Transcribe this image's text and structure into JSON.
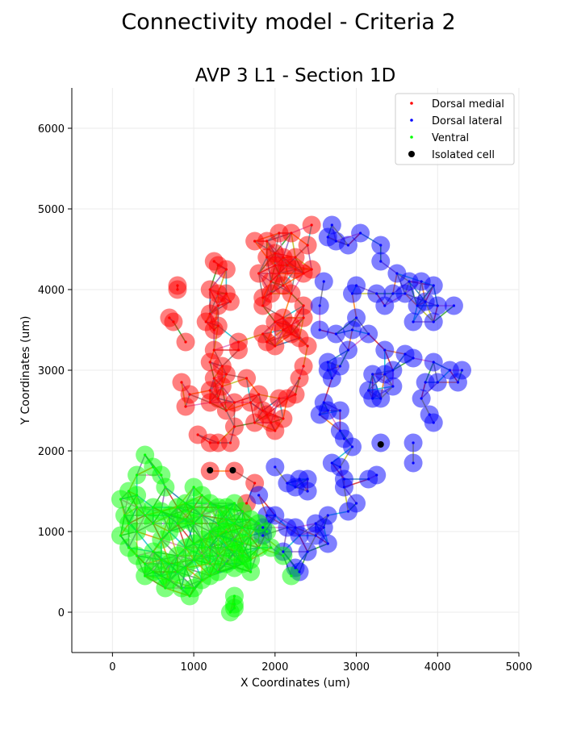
{
  "figure": {
    "suptitle": "Connectivity model - Criteria 2"
  },
  "chart_data": {
    "type": "scatter",
    "title": "AVP 3 L1 - Section 1D",
    "xlabel": "X Coordinates (um)",
    "ylabel": "Y Coordinates (um)",
    "xlim": [
      -500,
      5000
    ],
    "ylim": [
      -500,
      6500
    ],
    "xticks": [
      0,
      1000,
      2000,
      3000,
      4000,
      5000
    ],
    "yticks": [
      0,
      1000,
      2000,
      3000,
      4000,
      5000,
      6000
    ],
    "grid": true,
    "legend_position": "top-right",
    "legend": [
      {
        "label": "Dorsal medial",
        "color": "#ff0000",
        "marker": "small-dot"
      },
      {
        "label": "Dorsal lateral",
        "color": "#0000ff",
        "marker": "small-dot"
      },
      {
        "label": "Ventral",
        "color": "#00ff00",
        "marker": "small-dot"
      },
      {
        "label": "Isolated cell",
        "color": "#000000",
        "marker": "large-dot"
      }
    ],
    "series": [
      {
        "name": "Dorsal medial",
        "color": "#ff0000",
        "points": [
          [
            800,
            4000
          ],
          [
            800,
            4050
          ],
          [
            700,
            3650
          ],
          [
            750,
            3600
          ],
          [
            900,
            3350
          ],
          [
            850,
            2850
          ],
          [
            950,
            2700
          ],
          [
            900,
            2550
          ],
          [
            1050,
            2200
          ],
          [
            1200,
            2100
          ],
          [
            1300,
            2100
          ],
          [
            1200,
            1750
          ],
          [
            1500,
            1750
          ],
          [
            1250,
            4350
          ],
          [
            1300,
            4300
          ],
          [
            1400,
            4250
          ],
          [
            1200,
            4000
          ],
          [
            1300,
            3950
          ],
          [
            1400,
            3950
          ],
          [
            1450,
            3850
          ],
          [
            1300,
            3800
          ],
          [
            1200,
            3700
          ],
          [
            1150,
            3600
          ],
          [
            1250,
            3500
          ],
          [
            1300,
            3550
          ],
          [
            1250,
            3250
          ],
          [
            1200,
            3100
          ],
          [
            1350,
            3050
          ],
          [
            1250,
            2900
          ],
          [
            1400,
            2950
          ],
          [
            1350,
            2800
          ],
          [
            1200,
            2750
          ],
          [
            1300,
            2650
          ],
          [
            1200,
            2600
          ],
          [
            1400,
            2500
          ],
          [
            1500,
            2600
          ],
          [
            1500,
            2300
          ],
          [
            1450,
            2100
          ],
          [
            1550,
            3350
          ],
          [
            1550,
            3250
          ],
          [
            1650,
            2900
          ],
          [
            1700,
            2600
          ],
          [
            1800,
            2700
          ],
          [
            1850,
            2500
          ],
          [
            1750,
            2350
          ],
          [
            1900,
            2450
          ],
          [
            1950,
            2350
          ],
          [
            2000,
            2250
          ],
          [
            2100,
            2400
          ],
          [
            2050,
            2650
          ],
          [
            2150,
            2650
          ],
          [
            2250,
            2700
          ],
          [
            2300,
            2900
          ],
          [
            2350,
            3050
          ],
          [
            2400,
            3300
          ],
          [
            2300,
            3400
          ],
          [
            2200,
            3450
          ],
          [
            2100,
            3500
          ],
          [
            2000,
            3300
          ],
          [
            1900,
            3350
          ],
          [
            1850,
            3450
          ],
          [
            2000,
            3600
          ],
          [
            2100,
            3650
          ],
          [
            2200,
            3550
          ],
          [
            2350,
            3650
          ],
          [
            2350,
            3800
          ],
          [
            2200,
            3950
          ],
          [
            2100,
            4050
          ],
          [
            1950,
            3950
          ],
          [
            1850,
            3800
          ],
          [
            1850,
            3900
          ],
          [
            1950,
            4100
          ],
          [
            2050,
            4200
          ],
          [
            2150,
            4300
          ],
          [
            2250,
            4250
          ],
          [
            2350,
            4200
          ],
          [
            2450,
            4250
          ],
          [
            2400,
            4550
          ],
          [
            2450,
            4800
          ],
          [
            2200,
            4700
          ],
          [
            2050,
            4700
          ],
          [
            1900,
            4600
          ],
          [
            1750,
            4600
          ],
          [
            2000,
            4450
          ],
          [
            1900,
            4400
          ],
          [
            2100,
            4400
          ],
          [
            2250,
            4400
          ],
          [
            2000,
            4300
          ],
          [
            1800,
            4200
          ],
          [
            1750,
            1600
          ],
          [
            1650,
            1350
          ]
        ]
      },
      {
        "name": "Dorsal lateral",
        "color": "#0000ff",
        "points": [
          [
            2700,
            4800
          ],
          [
            2650,
            4650
          ],
          [
            2750,
            4600
          ],
          [
            2900,
            4550
          ],
          [
            3050,
            4700
          ],
          [
            3300,
            4550
          ],
          [
            3300,
            4350
          ],
          [
            3500,
            4200
          ],
          [
            3650,
            4100
          ],
          [
            3800,
            4100
          ],
          [
            3950,
            4050
          ],
          [
            3850,
            3850
          ],
          [
            4000,
            3800
          ],
          [
            4200,
            3800
          ],
          [
            3950,
            3600
          ],
          [
            3700,
            3600
          ],
          [
            3750,
            3800
          ],
          [
            3350,
            3800
          ],
          [
            3450,
            3950
          ],
          [
            3600,
            3950
          ],
          [
            3250,
            3950
          ],
          [
            3000,
            4050
          ],
          [
            2950,
            3950
          ],
          [
            2600,
            4100
          ],
          [
            2550,
            3800
          ],
          [
            2550,
            3500
          ],
          [
            2750,
            3450
          ],
          [
            2950,
            3500
          ],
          [
            3000,
            3650
          ],
          [
            3150,
            3450
          ],
          [
            2900,
            3250
          ],
          [
            2650,
            3100
          ],
          [
            2650,
            3000
          ],
          [
            2800,
            3050
          ],
          [
            2700,
            2900
          ],
          [
            2600,
            2600
          ],
          [
            2550,
            2450
          ],
          [
            2650,
            2500
          ],
          [
            2800,
            2500
          ],
          [
            2800,
            2250
          ],
          [
            2850,
            2150
          ],
          [
            2950,
            2050
          ],
          [
            3200,
            2950
          ],
          [
            3350,
            2950
          ],
          [
            3450,
            3000
          ],
          [
            3450,
            2800
          ],
          [
            3350,
            3250
          ],
          [
            3600,
            3200
          ],
          [
            3700,
            3150
          ],
          [
            3850,
            2850
          ],
          [
            3800,
            2650
          ],
          [
            4000,
            2850
          ],
          [
            4150,
            3000
          ],
          [
            4300,
            3000
          ],
          [
            4250,
            2850
          ],
          [
            3950,
            3100
          ],
          [
            3900,
            2450
          ],
          [
            3950,
            2350
          ],
          [
            3700,
            2100
          ],
          [
            3700,
            1850
          ],
          [
            3300,
            2100
          ],
          [
            3200,
            2650
          ],
          [
            3300,
            2650
          ],
          [
            3150,
            2750
          ],
          [
            3250,
            1700
          ],
          [
            3150,
            1650
          ],
          [
            3000,
            1350
          ],
          [
            2900,
            1250
          ],
          [
            2850,
            1550
          ],
          [
            2850,
            1650
          ],
          [
            2800,
            1800
          ],
          [
            2700,
            1850
          ],
          [
            2650,
            1200
          ],
          [
            2600,
            1050
          ],
          [
            2650,
            850
          ],
          [
            2500,
            950
          ],
          [
            2500,
            1100
          ],
          [
            2400,
            750
          ],
          [
            2300,
            950
          ],
          [
            2250,
            1050
          ],
          [
            2250,
            550
          ],
          [
            2300,
            500
          ],
          [
            2100,
            750
          ],
          [
            2150,
            1050
          ],
          [
            2000,
            1200
          ],
          [
            2000,
            1800
          ],
          [
            2300,
            1650
          ],
          [
            2400,
            1650
          ],
          [
            2400,
            1500
          ],
          [
            2150,
            1600
          ],
          [
            2250,
            1550
          ],
          [
            1800,
            1450
          ],
          [
            1900,
            1200
          ],
          [
            1850,
            950
          ],
          [
            1850,
            1050
          ]
        ]
      },
      {
        "name": "Ventral",
        "color": "#00ff00",
        "points": [
          [
            400,
            1950
          ],
          [
            500,
            1800
          ],
          [
            600,
            1700
          ],
          [
            650,
            1550
          ],
          [
            300,
            1700
          ],
          [
            200,
            1500
          ],
          [
            300,
            1450
          ],
          [
            100,
            1400
          ],
          [
            150,
            1200
          ],
          [
            200,
            1100
          ],
          [
            300,
            1000
          ],
          [
            100,
            950
          ],
          [
            200,
            800
          ],
          [
            300,
            700
          ],
          [
            400,
            600
          ],
          [
            400,
            450
          ],
          [
            500,
            750
          ],
          [
            600,
            900
          ],
          [
            700,
            1000
          ],
          [
            700,
            1200
          ],
          [
            800,
            1300
          ],
          [
            900,
            1350
          ],
          [
            1000,
            1550
          ],
          [
            1100,
            1450
          ],
          [
            1200,
            1350
          ],
          [
            1300,
            1300
          ],
          [
            1400,
            1300
          ],
          [
            1500,
            1350
          ],
          [
            1600,
            1250
          ],
          [
            1700,
            1150
          ],
          [
            1800,
            1100
          ],
          [
            1900,
            1000
          ],
          [
            1800,
            800
          ],
          [
            1700,
            650
          ],
          [
            1600,
            700
          ],
          [
            1500,
            550
          ],
          [
            1400,
            600
          ],
          [
            1300,
            500
          ],
          [
            1200,
            450
          ],
          [
            1100,
            400
          ],
          [
            1000,
            300
          ],
          [
            950,
            200
          ],
          [
            850,
            300
          ],
          [
            650,
            300
          ],
          [
            600,
            450
          ],
          [
            500,
            500
          ],
          [
            600,
            650
          ],
          [
            700,
            600
          ],
          [
            800,
            700
          ],
          [
            900,
            800
          ],
          [
            1000,
            850
          ],
          [
            1100,
            900
          ],
          [
            1200,
            1000
          ],
          [
            1300,
            1100
          ],
          [
            1400,
            1000
          ],
          [
            1500,
            900
          ],
          [
            1600,
            850
          ],
          [
            1700,
            950
          ],
          [
            1600,
            1050
          ],
          [
            1500,
            1100
          ],
          [
            1400,
            1150
          ],
          [
            1300,
            950
          ],
          [
            1200,
            800
          ],
          [
            1100,
            700
          ],
          [
            1000,
            650
          ],
          [
            900,
            550
          ],
          [
            800,
            500
          ],
          [
            700,
            400
          ],
          [
            500,
            1100
          ],
          [
            400,
            1200
          ],
          [
            300,
            1300
          ],
          [
            500,
            1300
          ],
          [
            600,
            1250
          ],
          [
            800,
            1100
          ],
          [
            900,
            1150
          ],
          [
            1000,
            1100
          ],
          [
            1100,
            1200
          ],
          [
            1000,
            1300
          ],
          [
            1200,
            600
          ],
          [
            1300,
            700
          ],
          [
            1400,
            800
          ],
          [
            1500,
            750
          ],
          [
            1600,
            600
          ],
          [
            1700,
            500
          ],
          [
            1500,
            200
          ],
          [
            1500,
            100
          ],
          [
            1450,
            0
          ],
          [
            1500,
            50
          ],
          [
            2200,
            450
          ],
          [
            2100,
            700
          ],
          [
            1950,
            800
          ]
        ]
      },
      {
        "name": "Isolated cell",
        "color": "#000000",
        "points": [
          [
            1200,
            1760
          ],
          [
            1480,
            1760
          ],
          [
            3300,
            2080
          ]
        ]
      }
    ]
  }
}
